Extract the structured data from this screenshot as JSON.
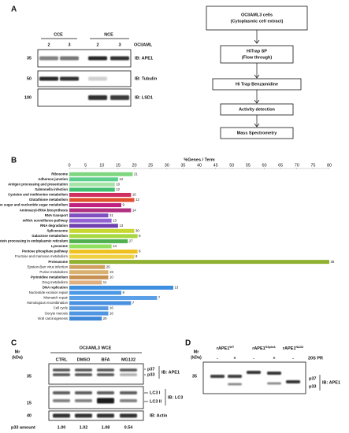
{
  "panel_a": {
    "label": "A",
    "groups": [
      "CCE",
      "NCE"
    ],
    "cell_line": "OCI/AML",
    "lanes": [
      "2",
      "3",
      "2",
      "3"
    ],
    "markers": [
      "35",
      "50",
      "100"
    ],
    "blots": [
      "IB: APE1",
      "IB: Tubulin",
      "IB: LSD1"
    ],
    "flow": [
      [
        "OCI/AML3 cells",
        "(Cytoplasmic cell extract)"
      ],
      [
        "HiTrap SP",
        "(Flow through)"
      ],
      [
        "Hi Trap Benzamidine"
      ],
      [
        "Activity detection"
      ],
      [
        "Mass Spectrometry"
      ]
    ]
  },
  "chart_data": {
    "type": "bar",
    "panel_label": "B",
    "x_label": "%Genes / Term",
    "xlim": [
      0,
      80
    ],
    "xticks": [
      0,
      5,
      10,
      15,
      20,
      25,
      30,
      35,
      40,
      45,
      50,
      55,
      60,
      65,
      70,
      75,
      80
    ],
    "categories": [
      "Ribosome",
      "Adherens junction",
      "Antigen processing and presentation",
      "Salmonella infection",
      "Cysteine and methionine metabolism",
      "Glutathione metabolism",
      "Amino sugar and nucleotide sugar metabolism",
      "Aminoacyl-tRNA biosynthesis",
      "RNA transport",
      "mRNA surveillance pathway",
      "RNA degradation",
      "Spliceosome",
      "Galactose metabolism",
      "Protein processing in endoplasmic reticulum",
      "Lysosome",
      "Pentose phosphate pathway",
      "Fructose and mannose metabolism",
      "Proteasome",
      "Epstein-Barr virus infection",
      "Purine metabolism",
      "Pyrimidine metabolism",
      "Drug metabolism",
      "DNA replication",
      "Nucleotide excision repair",
      "Mismatch repair",
      "Homologous recombination",
      "Cell cycle",
      "Oocyte meiosis",
      "Viral carcinogenesis"
    ],
    "values": [
      19.5,
      15,
      14,
      14,
      19,
      20,
      16,
      19,
      12,
      13,
      15,
      20,
      21,
      18,
      13,
      21,
      20,
      80,
      11,
      12,
      12,
      10,
      32,
      16,
      27,
      19,
      12,
      12,
      10
    ],
    "gene_counts": [
      "21",
      "12",
      "10",
      "12",
      "16",
      "12",
      "9",
      "14",
      "31",
      "13",
      "13",
      "30",
      "8",
      "27",
      "14",
      "8",
      "8",
      "36",
      "25",
      "19",
      "10",
      "11",
      "13",
      "9",
      "7",
      "7",
      "16",
      "16",
      "20"
    ],
    "bold": [
      true,
      true,
      true,
      true,
      true,
      true,
      true,
      true,
      true,
      true,
      true,
      true,
      true,
      true,
      true,
      true,
      false,
      true,
      false,
      false,
      true,
      false,
      true,
      false,
      false,
      false,
      false,
      false,
      false
    ],
    "colors": [
      "#7ed67e",
      "#5ccf8c",
      "#a6e3a6",
      "#3fbf6f",
      "#d0305f",
      "#e0502f",
      "#c0207f",
      "#b0307f",
      "#8050c0",
      "#9363d3",
      "#7040b0",
      "#c8d830",
      "#a8d840",
      "#50b050",
      "#90e060",
      "#f0c020",
      "#f0d040",
      "#90b030",
      "#d0a060",
      "#d8b070",
      "#c89050",
      "#e0b080",
      "#3f8fe0",
      "#4a98e6",
      "#5aa0e8",
      "#4a90e0",
      "#5a9ae0",
      "#4f95e2",
      "#3f88d8"
    ]
  },
  "panel_c": {
    "label": "C",
    "mr": [
      "Mr",
      "(kDa)"
    ],
    "title": "OCI/AML3 WCE",
    "lanes": [
      "CTRL",
      "DMSO",
      "BFA",
      "MG132"
    ],
    "markers": [
      "35",
      "15",
      "40"
    ],
    "bands_ape1": [
      "p37",
      "p33"
    ],
    "bands_lc3": [
      "LC3 I",
      "LC3 II"
    ],
    "blots": [
      "IB: APE1",
      "IB: LC3",
      "IB: Actin"
    ],
    "amount_label": "p33 amount",
    "amounts": [
      "1.00",
      "1.02",
      "1.08",
      "0.54"
    ]
  },
  "panel_d": {
    "label": "D",
    "mr": [
      "Mr",
      "(kDa)"
    ],
    "proteins": [
      {
        "base": "rAPE1",
        "sup": "WT"
      },
      {
        "base": "rAPE1",
        "sup": "K6pleA"
      },
      {
        "base": "rAPE1",
        "sup": "NΔ33"
      }
    ],
    "signs": [
      "-",
      "+",
      "-",
      "+",
      "-"
    ],
    "treatment": "20S PR",
    "marker": "35",
    "bands": [
      "p37",
      "p33"
    ],
    "blot": "IB: APE1"
  }
}
